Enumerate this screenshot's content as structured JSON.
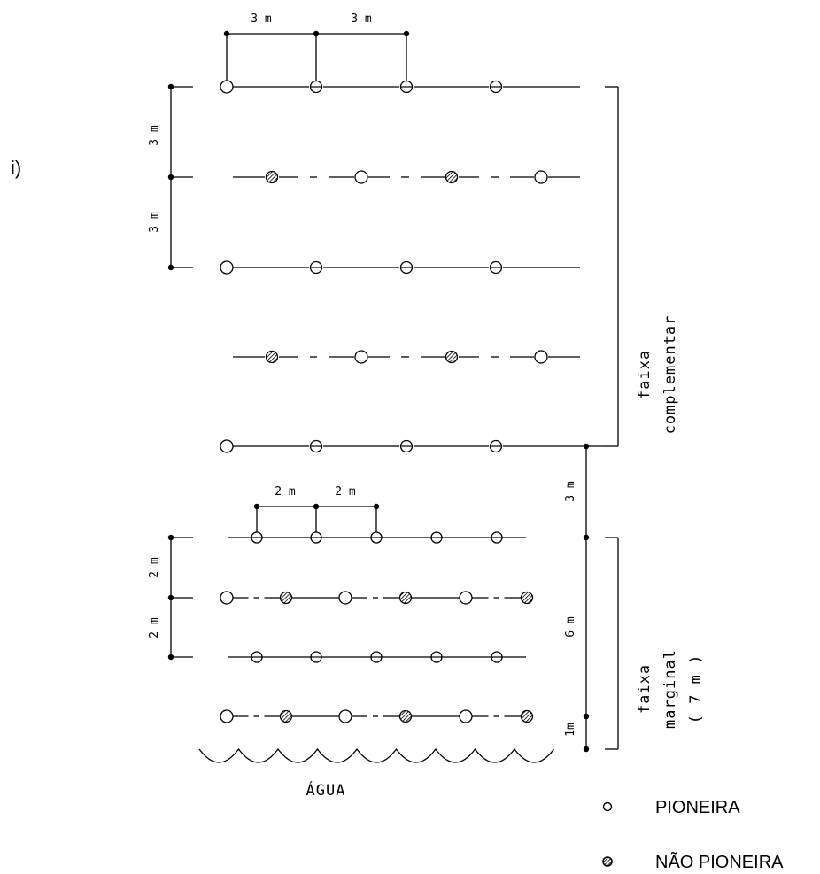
{
  "figure_label": "i)",
  "upper_spacing": {
    "horizontal": "3 m",
    "vertical": "3 m"
  },
  "lower_spacing": {
    "horizontal": "2 m",
    "vertical": "2 m"
  },
  "distances": {
    "gap_between_zones": "3 m",
    "marginal_width": "6 m",
    "edge_offset": "1m"
  },
  "zones": {
    "complementar": [
      "faixa",
      "complementar"
    ],
    "marginal": [
      "faixa",
      "marginal",
      "( 7 m )"
    ]
  },
  "water_label": "ÁGUA",
  "legend": [
    {
      "symbol": "open-circle",
      "label": "PIONEIRA"
    },
    {
      "symbol": "hatched-circle",
      "label": "NÃO PIONEIRA"
    }
  ],
  "symbol_keys": {
    "open-circle": "pioneer tree",
    "bar-circle": "pioneer tree (alternate)",
    "hatched-circle": "non-pioneer tree"
  },
  "rows": {
    "upper": [
      [
        "open-circle",
        "bar-circle",
        "bar-circle",
        "bar-circle"
      ],
      [
        "hatched-circle",
        "open-circle",
        "hatched-circle",
        "open-circle"
      ],
      [
        "open-circle",
        "bar-circle",
        "bar-circle",
        "bar-circle"
      ],
      [
        "hatched-circle",
        "open-circle",
        "hatched-circle",
        "open-circle"
      ],
      [
        "open-circle",
        "bar-circle",
        "bar-circle",
        "bar-circle"
      ]
    ],
    "lower": [
      [
        "bar-circle",
        "bar-circle",
        "bar-circle",
        "bar-circle",
        "bar-circle"
      ],
      [
        "open-circle",
        "hatched-circle",
        "open-circle",
        "hatched-circle",
        "open-circle",
        "hatched-circle"
      ],
      [
        "bar-circle",
        "bar-circle",
        "bar-circle",
        "bar-circle",
        "bar-circle"
      ],
      [
        "open-circle",
        "hatched-circle",
        "open-circle",
        "hatched-circle",
        "open-circle",
        "hatched-circle"
      ]
    ]
  }
}
